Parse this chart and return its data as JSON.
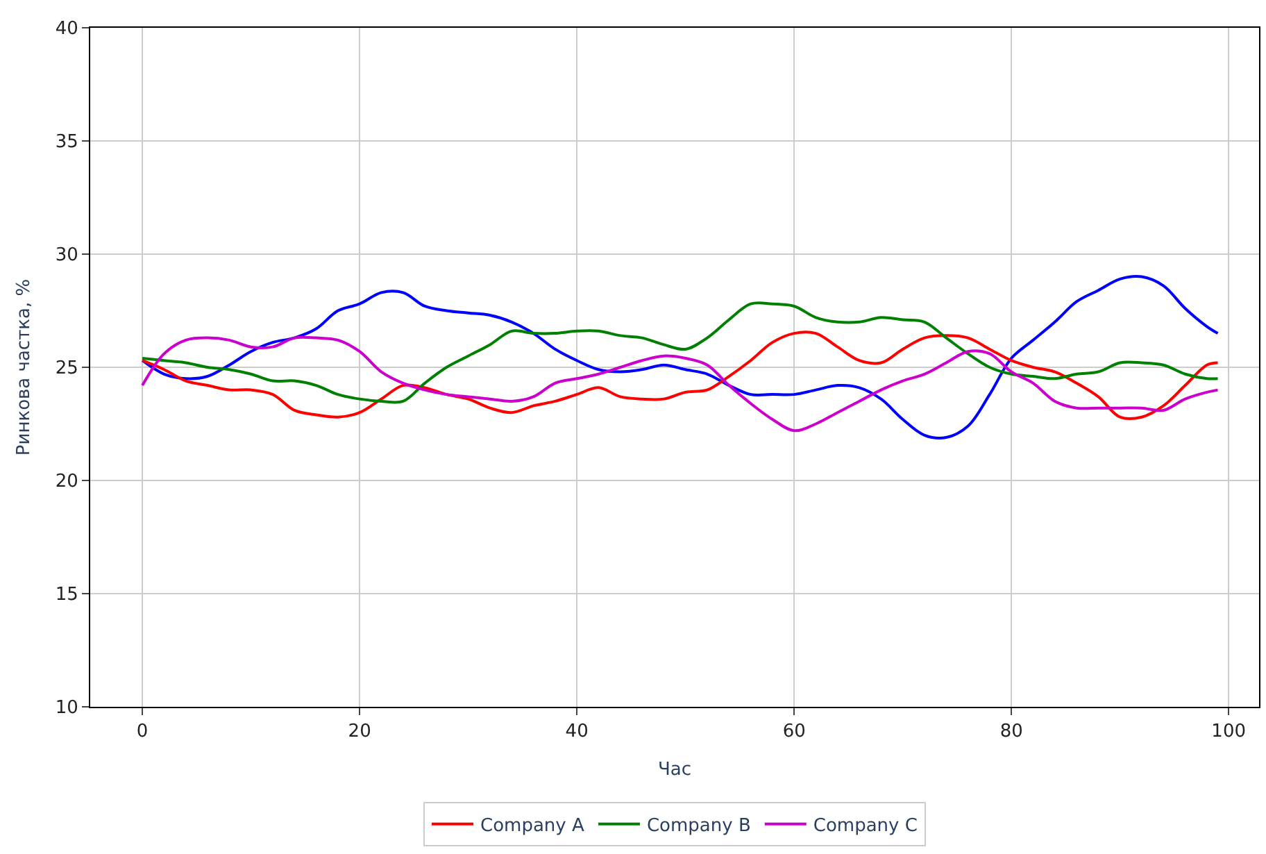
{
  "chart_data": {
    "type": "line",
    "xlabel": "Час",
    "ylabel": "Ринкова частка, %",
    "x": [
      0,
      2,
      4,
      6,
      8,
      10,
      12,
      14,
      16,
      18,
      20,
      22,
      24,
      26,
      28,
      30,
      32,
      34,
      36,
      38,
      40,
      42,
      44,
      46,
      48,
      50,
      52,
      54,
      56,
      58,
      60,
      62,
      64,
      66,
      68,
      70,
      72,
      74,
      76,
      78,
      80,
      82,
      84,
      86,
      88,
      90,
      92,
      94,
      96,
      98,
      99
    ],
    "series": [
      {
        "color": "#0000ff",
        "values": [
          25.3,
          24.7,
          24.5,
          24.6,
          25.1,
          25.7,
          26.1,
          26.3,
          26.7,
          27.5,
          27.8,
          28.3,
          28.3,
          27.7,
          27.5,
          27.4,
          27.3,
          27.0,
          26.5,
          25.8,
          25.3,
          24.9,
          24.8,
          24.9,
          25.1,
          24.9,
          24.7,
          24.2,
          23.8,
          23.8,
          23.8,
          24.0,
          24.2,
          24.1,
          23.6,
          22.7,
          22.0,
          21.9,
          22.4,
          23.8,
          25.4,
          26.2,
          27.0,
          27.9,
          28.4,
          28.9,
          29.0,
          28.6,
          27.6,
          26.8,
          26.5
        ]
      },
      {
        "name": "Company A",
        "color": "#ff0000",
        "values": [
          25.3,
          24.9,
          24.4,
          24.2,
          24.0,
          24.0,
          23.8,
          23.1,
          22.9,
          22.8,
          23.0,
          23.6,
          24.2,
          24.1,
          23.8,
          23.6,
          23.2,
          23.0,
          23.3,
          23.5,
          23.8,
          24.1,
          23.7,
          23.6,
          23.6,
          23.9,
          24.0,
          24.6,
          25.3,
          26.1,
          26.5,
          26.5,
          25.9,
          25.3,
          25.2,
          25.8,
          26.3,
          26.4,
          26.3,
          25.8,
          25.3,
          25.0,
          24.8,
          24.3,
          23.7,
          22.8,
          22.8,
          23.3,
          24.2,
          25.1,
          25.2
        ]
      },
      {
        "name": "Company B",
        "color": "#008000",
        "values": [
          25.4,
          25.3,
          25.2,
          25.0,
          24.9,
          24.7,
          24.4,
          24.4,
          24.2,
          23.8,
          23.6,
          23.5,
          23.5,
          24.3,
          25.0,
          25.5,
          26.0,
          26.6,
          26.5,
          26.5,
          26.6,
          26.6,
          26.4,
          26.3,
          26.0,
          25.8,
          26.3,
          27.1,
          27.8,
          27.8,
          27.7,
          27.2,
          27.0,
          27.0,
          27.2,
          27.1,
          27.0,
          26.3,
          25.6,
          25.0,
          24.7,
          24.6,
          24.5,
          24.7,
          24.8,
          25.2,
          25.2,
          25.1,
          24.7,
          24.5,
          24.5
        ]
      },
      {
        "name": "Company C",
        "color": "#cc00cc",
        "values": [
          24.2,
          25.6,
          26.2,
          26.3,
          26.2,
          25.9,
          25.9,
          26.3,
          26.3,
          26.2,
          25.7,
          24.8,
          24.3,
          24.0,
          23.8,
          23.7,
          23.6,
          23.5,
          23.7,
          24.3,
          24.5,
          24.7,
          25.0,
          25.3,
          25.5,
          25.4,
          25.1,
          24.2,
          23.4,
          22.7,
          22.2,
          22.5,
          23.0,
          23.5,
          24.0,
          24.4,
          24.7,
          25.2,
          25.7,
          25.6,
          24.8,
          24.3,
          23.5,
          23.2,
          23.2,
          23.2,
          23.2,
          23.1,
          23.6,
          23.9,
          24.0
        ]
      }
    ],
    "xlim": [
      -4.8,
      102.8
    ],
    "xticks": [
      0,
      20,
      40,
      60,
      80,
      100
    ],
    "ylim": [
      10,
      40
    ],
    "yticks": [
      10,
      15,
      20,
      25,
      30,
      35,
      40
    ],
    "grid": true,
    "legend": "bottom",
    "marker": "none",
    "line_style": "solid"
  }
}
